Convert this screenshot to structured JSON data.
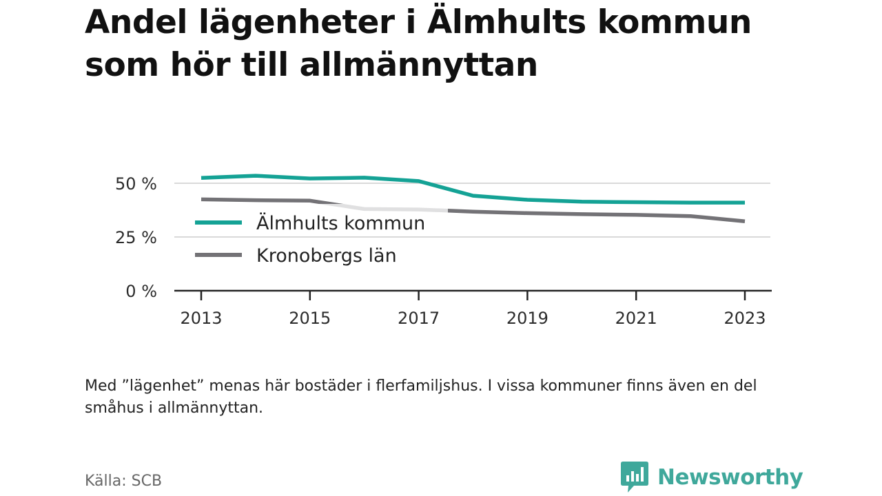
{
  "title": "Andel lägenheter i Älmhults kommun som hör till allmännyttan",
  "note": "Med ”lägenhet” menas här bostäder i flerfamiljshus. I vissa kommuner finns även en del småhus i allmännyttan.",
  "source": "Källa: SCB",
  "brand": {
    "name": "Newsworthy",
    "color": "#3fa89b",
    "icon": "bar-chart-bubble-icon"
  },
  "chart_data": {
    "type": "line",
    "x": [
      2013,
      2014,
      2015,
      2016,
      2017,
      2018,
      2019,
      2020,
      2021,
      2022,
      2023
    ],
    "x_ticks": [
      "2013",
      "2015",
      "2017",
      "2019",
      "2021",
      "2023"
    ],
    "y_ticks": [
      "0 %",
      "25 %",
      "50 %"
    ],
    "ylim": [
      0,
      50
    ],
    "grid": true,
    "legend_position": "center-left",
    "series": [
      {
        "name": "Älmhults kommun",
        "color": "#14a295",
        "values": [
          52.5,
          53.5,
          52.2,
          52.6,
          51.0,
          44.2,
          42.3,
          41.4,
          41.2,
          41.0,
          41.0
        ]
      },
      {
        "name": "Kronobergs län",
        "color": "#737276",
        "values": [
          42.5,
          42.1,
          41.9,
          38.0,
          37.8,
          36.8,
          36.1,
          35.6,
          35.3,
          34.7,
          32.3
        ]
      }
    ]
  }
}
